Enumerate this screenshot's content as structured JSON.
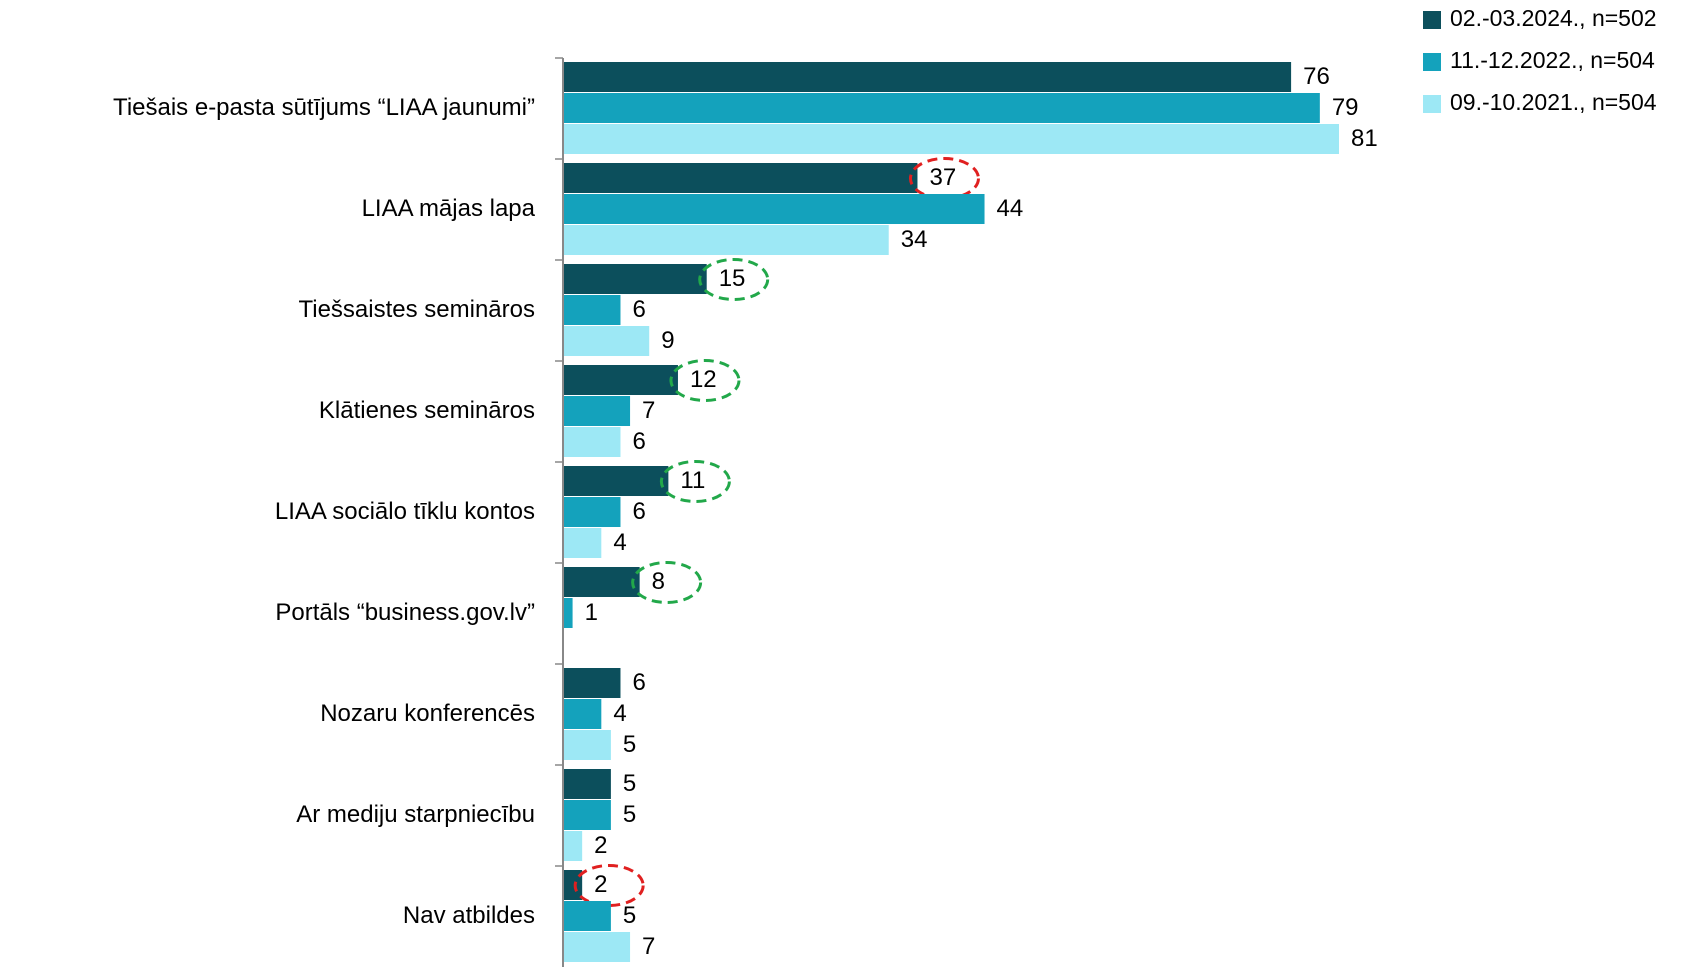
{
  "chart_data": {
    "type": "hbar",
    "categories": [
      "Tiešais e-pasta sūtījums “LIAA jaunumi”",
      "LIAA mājas lapa",
      "Tiešsaistes semināros",
      "Klātienes semināros",
      "LIAA sociālo tīklu kontos",
      "Portāls “business.gov.lv”",
      "Nozaru konferencēs",
      "Ar mediju starpniecību",
      "Nav atbildes"
    ],
    "series": [
      {
        "name": "02.-03.2024., n=502",
        "color": "#0c4f5c",
        "values": [
          76,
          37,
          15,
          12,
          11,
          8,
          6,
          5,
          2
        ],
        "label_circle_colors": [
          null,
          "#e02020",
          "#22a84a",
          "#22a84a",
          "#22a84a",
          "#22a84a",
          null,
          null,
          "#e02020"
        ]
      },
      {
        "name": "11.-12.2022., n=504",
        "color": "#14a2bc",
        "values": [
          79,
          44,
          6,
          7,
          6,
          1,
          4,
          5,
          5
        ]
      },
      {
        "name": "09.-10.2021., n=504",
        "color": "#9de8f5",
        "values": [
          81,
          34,
          9,
          6,
          4,
          null,
          5,
          2,
          7
        ]
      }
    ],
    "legend": "top-right"
  }
}
